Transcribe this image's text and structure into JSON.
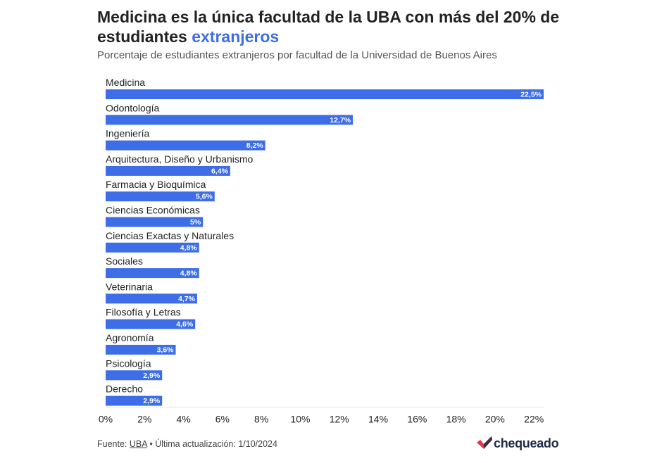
{
  "header": {
    "title_main": "Medicina es la única facultad de la UBA con más del 20% de estudiantes",
    "title_highlight": "extranjeros",
    "subtitle": "Porcentaje de estudiantes extranjeros por facultad de la Universidad de Buenos Aires"
  },
  "colors": {
    "bar": "#3d6ee8",
    "highlight_text": "#3d6ee8",
    "logo_red": "#e63946",
    "logo_dark": "#1f2a44"
  },
  "chart_data": {
    "type": "bar",
    "orientation": "horizontal",
    "title": "Medicina es la única facultad de la UBA con más del 20% de estudiantes extranjeros",
    "subtitle": "Porcentaje de estudiantes extranjeros por facultad de la Universidad de Buenos Aires",
    "categories": [
      "Medicina",
      "Odontología",
      "Ingeniería",
      "Arquitectura, Diseño y Urbanismo",
      "Farmacia y Bioquímica",
      "Ciencias Económicas",
      "Ciencias Exactas y Naturales",
      "Sociales",
      "Veterinaria",
      "Filosofía y Letras",
      "Agronomía",
      "Psicología",
      "Derecho"
    ],
    "values": [
      22.5,
      12.7,
      8.2,
      6.4,
      5.6,
      5,
      4.8,
      4.8,
      4.7,
      4.6,
      3.6,
      2.9,
      2.9
    ],
    "value_labels": [
      "22,5%",
      "12,7%",
      "8,2%",
      "6,4%",
      "5,6%",
      "5%",
      "4,8%",
      "4,8%",
      "4,7%",
      "4,6%",
      "3,6%",
      "2,9%",
      "2,9%"
    ],
    "x_ticks": [
      0,
      2,
      4,
      6,
      8,
      10,
      12,
      14,
      16,
      18,
      20,
      22
    ],
    "x_tick_labels": [
      "0%",
      "2%",
      "4%",
      "6%",
      "8%",
      "10%",
      "12%",
      "14%",
      "16%",
      "18%",
      "20%",
      "22%"
    ],
    "xlim": [
      0,
      22.5
    ],
    "xlabel": "",
    "ylabel": "",
    "grid": false
  },
  "footer": {
    "source_prefix": "Fuente: ",
    "source_link": "UBA",
    "updated": " • Última actualización: 1/10/2024",
    "brand": "chequeado"
  }
}
